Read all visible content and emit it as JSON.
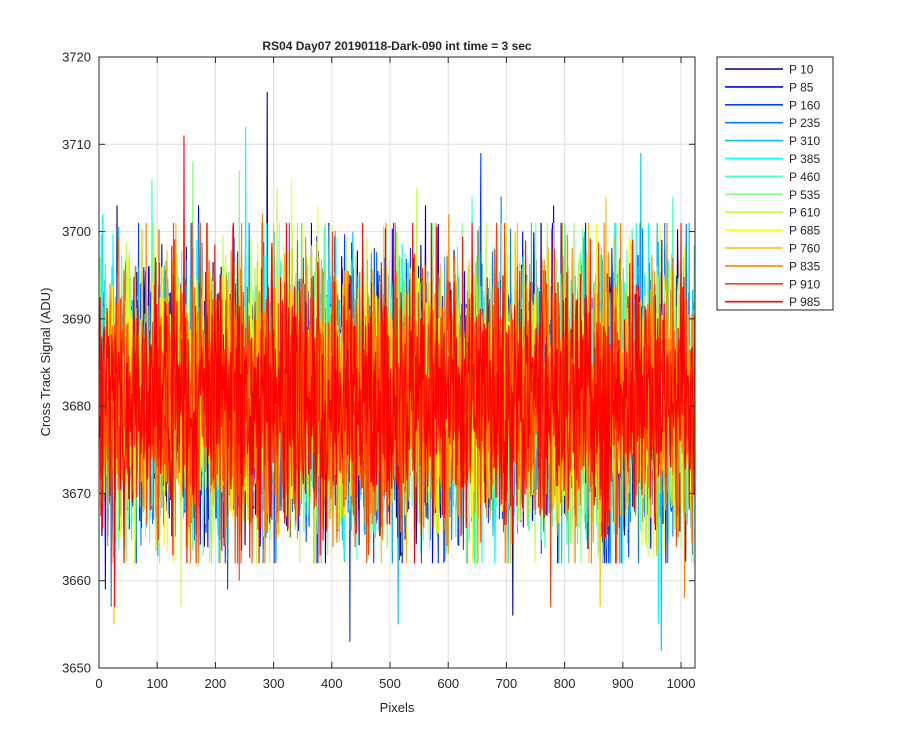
{
  "chart_data": {
    "type": "line",
    "title": "RS04 Day07 20190118-Dark-090 int time = 3 sec",
    "xlabel": "Pixels",
    "ylabel": "Cross Track Signal (ADU)",
    "xlim": [
      0,
      1024
    ],
    "ylim": [
      3650,
      3720
    ],
    "xticks": [
      0,
      100,
      200,
      300,
      400,
      500,
      600,
      700,
      800,
      900,
      1000
    ],
    "yticks": [
      3650,
      3660,
      3670,
      3680,
      3690,
      3700,
      3710,
      3720
    ],
    "grid": true,
    "legend_position": "outside-right",
    "noise": {
      "mean": 3681,
      "sigma": 7.5,
      "n_points": 1024
    },
    "series": [
      {
        "name": "P 10",
        "color": "#00008f",
        "spikes": [
          [
            288,
            3716
          ],
          [
            30,
            3703
          ],
          [
            560,
            3703
          ],
          [
            710,
            3656
          ]
        ]
      },
      {
        "name": "P 85",
        "color": "#0000ff",
        "spikes": [
          [
            10,
            3659
          ],
          [
            170,
            3703
          ],
          [
            780,
            3703
          ],
          [
            835,
            3701
          ]
        ]
      },
      {
        "name": "P 160",
        "color": "#0040ff",
        "spikes": [
          [
            430,
            3653
          ],
          [
            655,
            3709
          ],
          [
            220,
            3659
          ]
        ]
      },
      {
        "name": "P 235",
        "color": "#0080ff",
        "spikes": [
          [
            20,
            3657
          ],
          [
            145,
            3702
          ],
          [
            690,
            3704
          ]
        ]
      },
      {
        "name": "P 310",
        "color": "#00bfff",
        "spikes": [
          [
            965,
            3652
          ],
          [
            513,
            3655
          ],
          [
            930,
            3709
          ]
        ]
      },
      {
        "name": "P 385",
        "color": "#00ffff",
        "spikes": [
          [
            251,
            3712
          ],
          [
            5,
            3702
          ],
          [
            960,
            3655
          ]
        ]
      },
      {
        "name": "P 460",
        "color": "#40ffbf",
        "spikes": [
          [
            90,
            3706
          ],
          [
            640,
            3704
          ],
          [
            985,
            3704
          ]
        ]
      },
      {
        "name": "P 535",
        "color": "#80ff80",
        "spikes": [
          [
            160,
            3708
          ],
          [
            240,
            3707
          ],
          [
            510,
            3700
          ]
        ]
      },
      {
        "name": "P 610",
        "color": "#bfff40",
        "spikes": [
          [
            140,
            3657
          ],
          [
            305,
            3705
          ],
          [
            545,
            3705
          ]
        ]
      },
      {
        "name": "P 685",
        "color": "#ffff00",
        "spikes": [
          [
            330,
            3706
          ],
          [
            375,
            3703
          ],
          [
            700,
            3701
          ]
        ]
      },
      {
        "name": "P 760",
        "color": "#ffbf00",
        "spikes": [
          [
            25,
            3655
          ],
          [
            860,
            3657
          ],
          [
            870,
            3704
          ]
        ]
      },
      {
        "name": "P 835",
        "color": "#ff8000",
        "spikes": [
          [
            280,
            3702
          ],
          [
            1005,
            3658
          ],
          [
            600,
            3702
          ]
        ]
      },
      {
        "name": "P 910",
        "color": "#ff4000",
        "spikes": [
          [
            775,
            3657
          ],
          [
            400,
            3700
          ],
          [
            240,
            3660
          ]
        ]
      },
      {
        "name": "P 985",
        "color": "#ff0000",
        "spikes": [
          [
            145,
            3711
          ],
          [
            26,
            3657
          ],
          [
            570,
            3701
          ]
        ]
      }
    ]
  }
}
